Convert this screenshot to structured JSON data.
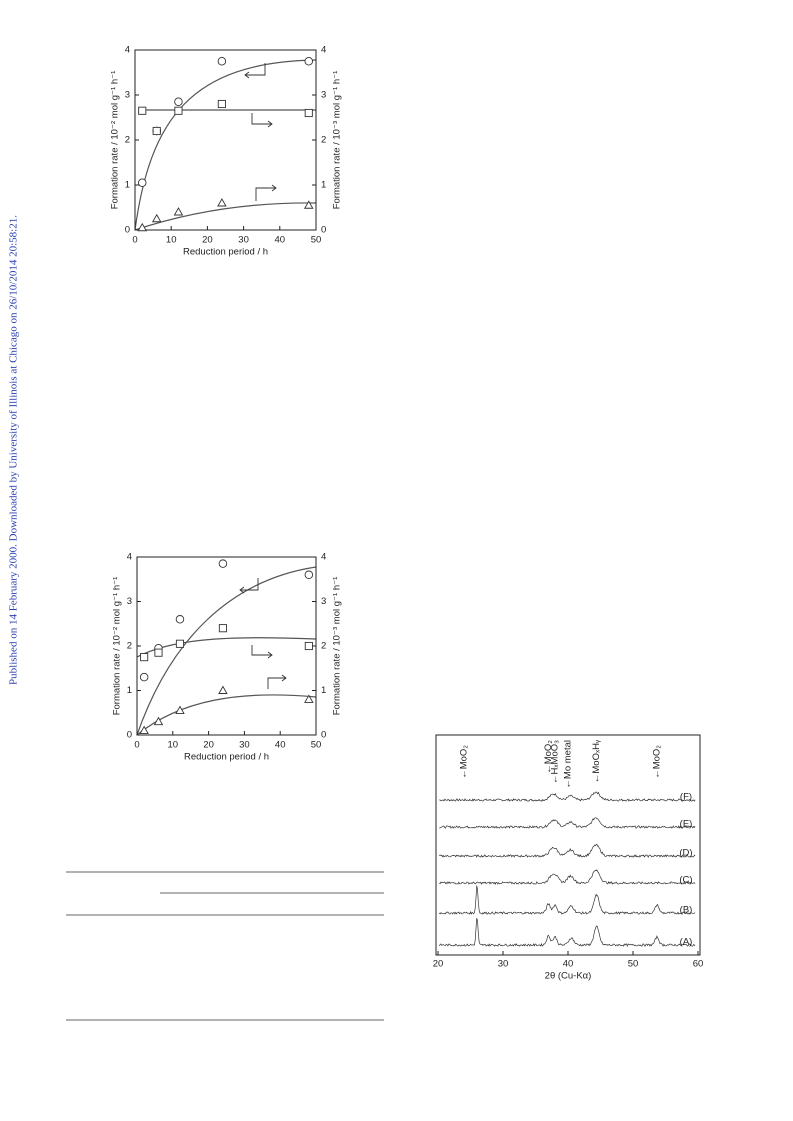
{
  "side_note": "Published on 14 February 2000. Downloaded by University of Illinois at Chicago on 26/10/2014 20:58:21.",
  "figures": [
    {
      "x_label": "Reduction period / h",
      "y_label": "Formation rate / 10⁻² mol g⁻¹ h⁻¹",
      "y2_label": "Formation rate / 10⁻³ mol g⁻¹ h⁻¹",
      "xlim": [
        0,
        50
      ],
      "xticks": [
        0,
        10,
        20,
        30,
        40,
        50
      ],
      "ylim": [
        0,
        4
      ],
      "yticks": [
        0,
        1,
        2,
        3,
        4
      ],
      "y2lim": [
        0,
        4
      ],
      "y2ticks": [
        0,
        1,
        2,
        3,
        4
      ],
      "series": [
        {
          "marker": "circle",
          "x": [
            2,
            6,
            12,
            24,
            48
          ],
          "values": [
            1.05,
            2.2,
            2.85,
            3.75,
            3.75
          ]
        },
        {
          "marker": "square",
          "axis": "y2",
          "x": [
            2,
            6,
            12,
            24,
            48
          ],
          "values": [
            2.65,
            2.2,
            2.65,
            2.8,
            2.6
          ]
        },
        {
          "marker": "triangle",
          "axis": "y2",
          "x": [
            2,
            6,
            12,
            24,
            48
          ],
          "values": [
            0.05,
            0.25,
            0.4,
            0.6,
            0.55
          ]
        }
      ]
    },
    {
      "x_label": "Reduction period / h",
      "y_label": "Formation rate / 10⁻² mol g⁻¹ h⁻¹",
      "y2_label": "Formation rate / 10⁻³ mol g⁻¹ h⁻¹",
      "xlim": [
        0,
        50
      ],
      "xticks": [
        0,
        10,
        20,
        30,
        40,
        50
      ],
      "ylim": [
        0,
        4
      ],
      "yticks": [
        0,
        1,
        2,
        3,
        4
      ],
      "y2lim": [
        0,
        4
      ],
      "y2ticks": [
        0,
        1,
        2,
        3,
        4
      ],
      "series": [
        {
          "marker": "circle",
          "x": [
            2,
            6,
            12,
            24,
            48
          ],
          "values": [
            1.3,
            1.95,
            2.6,
            3.85,
            3.6
          ]
        },
        {
          "marker": "square",
          "axis": "y2",
          "x": [
            2,
            6,
            12,
            24,
            48
          ],
          "values": [
            1.75,
            1.85,
            2.05,
            2.4,
            2.0
          ]
        },
        {
          "marker": "triangle",
          "axis": "y2",
          "x": [
            2,
            6,
            12,
            24,
            48
          ],
          "values": [
            0.1,
            0.3,
            0.55,
            1.0,
            0.8
          ]
        }
      ]
    },
    {
      "x_label": "2θ (Cu-Kα)",
      "xlim": [
        20,
        60
      ],
      "xticks": [
        20,
        30,
        40,
        50,
        60
      ],
      "annotations": [
        "←MoO₂",
        "←MoO₂",
        "←HₓMoO₃",
        "←Mo metal",
        "←MoOₓHᵧ",
        "←MoO₂"
      ],
      "annotation_x": [
        24,
        37,
        38,
        40,
        44.4,
        53.7
      ],
      "traces": [
        "(F)",
        "(E)",
        "(D)",
        "(C)",
        "(B)",
        "(A)"
      ]
    }
  ]
}
